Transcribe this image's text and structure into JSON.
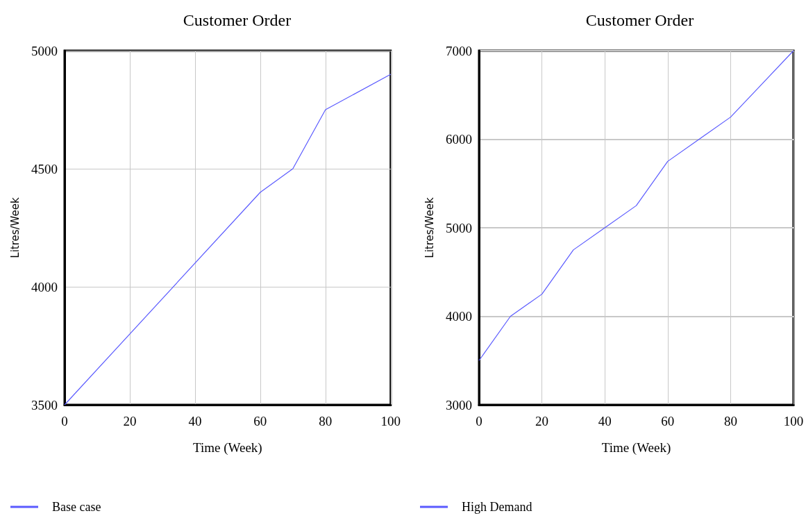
{
  "chart_data": [
    {
      "type": "line",
      "title": "Customer Order",
      "xlabel": "Time (Week)",
      "ylabel": "Litres/Week",
      "x": [
        0,
        60,
        70,
        80,
        100
      ],
      "series": [
        {
          "name": "Base case",
          "color": "#5a5aff",
          "values": [
            3500,
            4400,
            4500,
            4750,
            4900
          ]
        }
      ],
      "xlim": [
        0,
        100
      ],
      "xticks": [
        0,
        20,
        40,
        60,
        80,
        100
      ],
      "ylim": [
        3500,
        5000
      ],
      "yticks": [
        3500,
        4000,
        4500,
        5000
      ],
      "grid": true,
      "legend": "bottom left",
      "marker": "none",
      "line_style": "solid"
    },
    {
      "type": "line",
      "title": "Customer Order",
      "xlabel": "Time (Week)",
      "ylabel": "Litres/Week",
      "x": [
        0,
        10,
        20,
        30,
        40,
        50,
        60,
        70,
        80,
        90,
        100
      ],
      "series": [
        {
          "name": "High Demand",
          "color": "#5a5aff",
          "values": [
            3500,
            4000,
            4250,
            4750,
            5000,
            5250,
            5750,
            6000,
            6250,
            6625,
            7000
          ]
        }
      ],
      "xlim": [
        0,
        100
      ],
      "xticks": [
        0,
        20,
        40,
        60,
        80,
        100
      ],
      "ylim": [
        3000,
        7000
      ],
      "yticks": [
        3000,
        4000,
        5000,
        6000,
        7000
      ],
      "grid": true,
      "legend": "bottom left",
      "marker": "none",
      "line_style": "solid"
    }
  ]
}
